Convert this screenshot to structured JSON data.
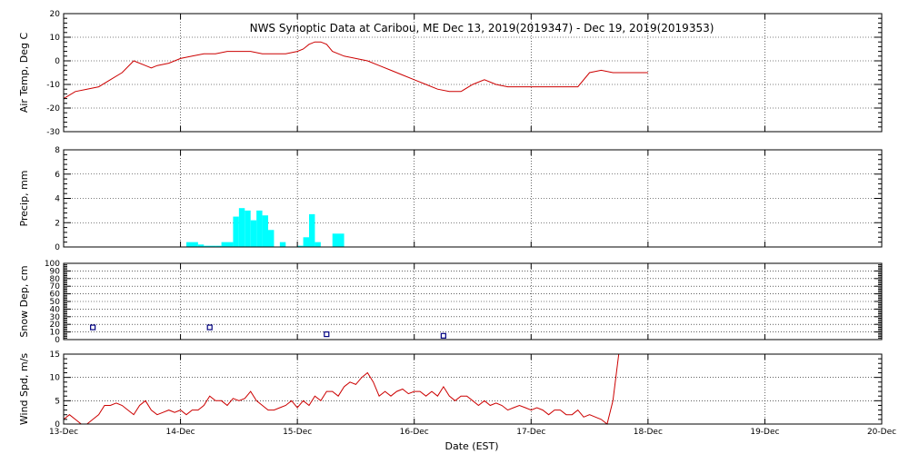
{
  "chart_data": {
    "type": "multi-panel time series",
    "title": "NWS Synoptic Data at Caribou, ME   Dec 13, 2019(2019347) - Dec 19, 2019(2019353)",
    "xlabel": "Date (EST)",
    "x_tick_labels": [
      "13-Dec",
      "14-Dec",
      "15-Dec",
      "16-Dec",
      "17-Dec",
      "18-Dec",
      "19-Dec",
      "20-Dec"
    ],
    "xlim_days": [
      0,
      7
    ],
    "grid": true,
    "colors": {
      "line": "#cc0000",
      "precip": "#00ffff",
      "snow_marker": "#000080",
      "grid": "#000000"
    },
    "panels": [
      {
        "id": "air_temp",
        "type": "line",
        "ylabel": "Air Temp, Deg C",
        "ylim": [
          -30,
          20
        ],
        "y_ticks": [
          -30,
          -20,
          -10,
          0,
          10,
          20
        ],
        "series": [
          {
            "x": [
              0.0,
              0.1,
              0.2,
              0.3,
              0.4,
              0.5,
              0.6,
              0.7,
              0.75,
              0.8,
              0.9,
              1.0,
              1.1,
              1.2,
              1.3,
              1.4,
              1.5,
              1.6,
              1.7,
              1.8,
              1.9,
              2.0,
              2.05,
              2.1,
              2.15,
              2.2,
              2.25,
              2.3,
              2.35,
              2.4,
              2.5,
              2.6,
              2.7,
              2.8,
              2.9,
              3.0,
              3.1,
              3.2,
              3.3,
              3.4,
              3.5,
              3.6,
              3.7,
              3.8,
              3.9,
              4.0,
              4.1,
              4.2,
              4.3,
              4.4,
              4.5,
              4.6,
              4.7,
              4.8,
              4.9,
              5.0
            ],
            "y": [
              -16,
              -13,
              -12,
              -11,
              -8,
              -5,
              0,
              -2,
              -3,
              -2,
              -1,
              1,
              2,
              3,
              3,
              4,
              4,
              4,
              3,
              3,
              3,
              4,
              5,
              7,
              8,
              8,
              7,
              4,
              3,
              2,
              1,
              0,
              -2,
              -4,
              -6,
              -8,
              -10,
              -12,
              -13,
              -13,
              -10,
              -8,
              -10,
              -11,
              -11,
              -11,
              -11,
              -11,
              -11,
              -11,
              -5,
              -4,
              -5,
              -5,
              -5,
              -5
            ]
          }
        ]
      },
      {
        "id": "precip",
        "type": "bar",
        "ylabel": "Precip, mm",
        "ylim": [
          0,
          8
        ],
        "y_ticks": [
          0,
          2,
          4,
          6,
          8
        ],
        "bars": [
          {
            "x": 1.05,
            "w": 0.1,
            "v": 0.4
          },
          {
            "x": 1.15,
            "w": 0.05,
            "v": 0.2
          },
          {
            "x": 1.2,
            "w": 0.1,
            "v": 0.1
          },
          {
            "x": 1.3,
            "w": 0.05,
            "v": 0.1
          },
          {
            "x": 1.35,
            "w": 0.1,
            "v": 0.4
          },
          {
            "x": 1.45,
            "w": 0.05,
            "v": 2.5
          },
          {
            "x": 1.5,
            "w": 0.05,
            "v": 3.2
          },
          {
            "x": 1.55,
            "w": 0.05,
            "v": 3.0
          },
          {
            "x": 1.6,
            "w": 0.05,
            "v": 2.2
          },
          {
            "x": 1.65,
            "w": 0.05,
            "v": 3.0
          },
          {
            "x": 1.7,
            "w": 0.05,
            "v": 2.6
          },
          {
            "x": 1.75,
            "w": 0.05,
            "v": 1.4
          },
          {
            "x": 1.85,
            "w": 0.05,
            "v": 0.4
          },
          {
            "x": 2.0,
            "w": 0.05,
            "v": 0.1
          },
          {
            "x": 2.05,
            "w": 0.05,
            "v": 0.8
          },
          {
            "x": 2.1,
            "w": 0.05,
            "v": 2.7
          },
          {
            "x": 2.15,
            "w": 0.05,
            "v": 0.4
          },
          {
            "x": 2.3,
            "w": 0.1,
            "v": 1.1
          }
        ]
      },
      {
        "id": "snow_depth",
        "type": "scatter",
        "ylabel": "Snow Dep, cm",
        "ylim": [
          0,
          100
        ],
        "y_ticks": [
          0,
          10,
          20,
          30,
          40,
          50,
          60,
          70,
          80,
          90,
          100
        ],
        "points": {
          "x": [
            0.25,
            1.25,
            2.25,
            3.25
          ],
          "y": [
            16,
            16,
            7,
            5
          ]
        }
      },
      {
        "id": "wind_speed",
        "type": "line",
        "ylabel": "Wind Spd, m/s",
        "ylim": [
          0,
          15
        ],
        "y_ticks": [
          0,
          5,
          10,
          15
        ],
        "series": [
          {
            "x": [
              0.0,
              0.05,
              0.1,
              0.15,
              0.2,
              0.25,
              0.3,
              0.35,
              0.4,
              0.45,
              0.5,
              0.55,
              0.6,
              0.65,
              0.7,
              0.75,
              0.8,
              0.85,
              0.9,
              0.95,
              1.0,
              1.05,
              1.1,
              1.15,
              1.2,
              1.25,
              1.3,
              1.35,
              1.4,
              1.45,
              1.5,
              1.55,
              1.6,
              1.65,
              1.7,
              1.75,
              1.8,
              1.85,
              1.9,
              1.95,
              2.0,
              2.05,
              2.1,
              2.15,
              2.2,
              2.25,
              2.3,
              2.35,
              2.4,
              2.45,
              2.5,
              2.55,
              2.6,
              2.65,
              2.7,
              2.75,
              2.8,
              2.85,
              2.9,
              2.95,
              3.0,
              3.05,
              3.1,
              3.15,
              3.2,
              3.25,
              3.3,
              3.35,
              3.4,
              3.45,
              3.5,
              3.55,
              3.6,
              3.65,
              3.7,
              3.75,
              3.8,
              3.85,
              3.9,
              3.95,
              4.0,
              4.05,
              4.1,
              4.15,
              4.2,
              4.25,
              4.3,
              4.35,
              4.4,
              4.45,
              4.5,
              4.55,
              4.6,
              4.65,
              4.7,
              4.75,
              4.8
            ],
            "y": [
              1,
              2,
              1,
              0,
              0,
              1,
              2,
              4,
              4,
              4.5,
              4,
              3,
              2,
              4,
              5,
              3,
              2,
              2.5,
              3,
              2.5,
              3,
              2,
              3,
              3,
              4,
              6,
              5,
              5,
              4,
              5.5,
              5,
              5.5,
              7,
              5,
              4,
              3,
              3,
              3.5,
              4,
              5,
              3.5,
              5,
              4,
              6,
              5,
              7,
              7,
              6,
              8,
              9,
              8.5,
              10,
              11,
              9,
              6,
              7,
              6,
              7,
              7.5,
              6.5,
              7,
              7,
              6,
              7,
              6,
              8,
              6,
              5,
              6,
              6,
              5,
              4,
              5,
              4,
              4.5,
              4,
              3,
              3.5,
              4,
              3.5,
              3,
              3.5,
              3,
              2,
              3,
              3,
              2,
              2,
              3,
              1.5,
              2,
              1.5,
              1,
              0,
              5,
              15,
              15
            ]
          }
        ]
      }
    ]
  }
}
